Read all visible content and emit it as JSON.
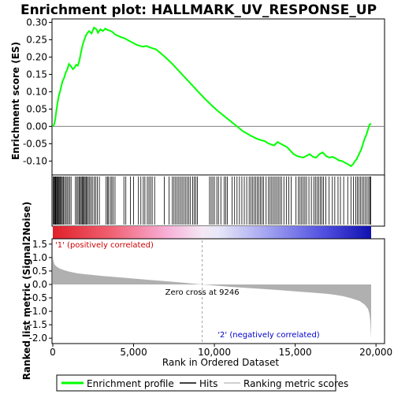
{
  "chart_data": {
    "type": "line",
    "title": "Enrichment plot: HALLMARK_UV_RESPONSE_UP",
    "es_panel": {
      "ylabel": "Enrichment score (ES)",
      "ylim": [
        -0.14,
        0.31
      ],
      "yticks": [
        "0.30",
        "0.25",
        "0.20",
        "0.15",
        "0.10",
        "0.05",
        "0.00",
        "-0.05",
        "-0.10"
      ],
      "ytick_values": [
        0.3,
        0.25,
        0.2,
        0.15,
        0.1,
        0.05,
        0.0,
        -0.05,
        -0.1
      ],
      "series": [
        {
          "name": "Enrichment profile",
          "color": "#00ff00",
          "x": [
            0,
            80,
            150,
            220,
            300,
            380,
            450,
            520,
            600,
            700,
            800,
            900,
            1000,
            1100,
            1250,
            1350,
            1450,
            1550,
            1650,
            1750,
            1850,
            1950,
            2050,
            2150,
            2250,
            2400,
            2550,
            2700,
            2800,
            2950,
            3100,
            3250,
            3400,
            3550,
            3700,
            3850,
            4000,
            4200,
            4400,
            4600,
            4800,
            5000,
            5200,
            5400,
            5600,
            5800,
            6000,
            6200,
            6400,
            6700,
            7000,
            7400,
            7800,
            8200,
            8600,
            9000,
            9400,
            9800,
            10200,
            10600,
            11000,
            11400,
            11800,
            12000,
            12300,
            12600,
            12900,
            13100,
            13300,
            13500,
            13700,
            13900,
            14100,
            14300,
            14500,
            14700,
            14900,
            15100,
            15300,
            15500,
            15700,
            15900,
            16100,
            16300,
            16500,
            16700,
            16900,
            17100,
            17300,
            17500,
            17700,
            17900,
            18100,
            18300,
            18450,
            18600,
            18700,
            18800,
            18900,
            19000,
            19100,
            19200,
            19300,
            19400,
            19500,
            19600,
            19700
          ],
          "y": [
            0.0,
            0.005,
            0.02,
            0.045,
            0.07,
            0.09,
            0.1,
            0.115,
            0.13,
            0.14,
            0.155,
            0.165,
            0.18,
            0.175,
            0.165,
            0.17,
            0.178,
            0.175,
            0.19,
            0.215,
            0.235,
            0.25,
            0.262,
            0.27,
            0.275,
            0.268,
            0.285,
            0.28,
            0.27,
            0.28,
            0.275,
            0.282,
            0.278,
            0.276,
            0.272,
            0.265,
            0.262,
            0.258,
            0.255,
            0.25,
            0.245,
            0.24,
            0.235,
            0.232,
            0.23,
            0.232,
            0.228,
            0.225,
            0.222,
            0.21,
            0.198,
            0.18,
            0.16,
            0.14,
            0.12,
            0.1,
            0.08,
            0.062,
            0.045,
            0.03,
            0.015,
            0.0,
            -0.015,
            -0.02,
            -0.028,
            -0.035,
            -0.04,
            -0.042,
            -0.048,
            -0.052,
            -0.055,
            -0.045,
            -0.05,
            -0.055,
            -0.06,
            -0.07,
            -0.08,
            -0.085,
            -0.088,
            -0.09,
            -0.085,
            -0.08,
            -0.088,
            -0.09,
            -0.08,
            -0.075,
            -0.085,
            -0.09,
            -0.088,
            -0.092,
            -0.098,
            -0.1,
            -0.105,
            -0.11,
            -0.115,
            -0.108,
            -0.1,
            -0.095,
            -0.085,
            -0.075,
            -0.065,
            -0.05,
            -0.035,
            -0.025,
            -0.01,
            0.005,
            0.008
          ]
        }
      ]
    },
    "hits_panel": {
      "hit_positions": [
        20,
        60,
        110,
        150,
        190,
        240,
        290,
        330,
        380,
        430,
        480,
        530,
        590,
        650,
        720,
        800,
        880,
        960,
        1050,
        1130,
        1400,
        1480,
        1560,
        1640,
        1700,
        1760,
        1820,
        1880,
        1940,
        2000,
        2060,
        2120,
        2200,
        2280,
        2360,
        2450,
        2560,
        2650,
        2760,
        2880,
        3300,
        3380,
        3450,
        3560,
        3650,
        3740,
        3850,
        4400,
        4520,
        4800,
        5000,
        5300,
        5450,
        5600,
        5700,
        5850,
        5950,
        6050,
        6150,
        6300,
        6900,
        7200,
        7400,
        7500,
        7600,
        7700,
        7800,
        7900,
        8000,
        8100,
        8200,
        8300,
        8400,
        8500,
        8650,
        8750,
        8850,
        8950,
        9700,
        9800,
        9900,
        10000,
        10150,
        10250,
        10400,
        10600,
        10700,
        10800,
        11100,
        11250,
        11400,
        11550,
        11700,
        11850,
        12000,
        12150,
        12250,
        12350,
        12450,
        12550,
        12650,
        12750,
        12850,
        12950,
        13050,
        13200,
        13350,
        13450,
        13550,
        13650,
        13750,
        13850,
        13950,
        14050,
        14150,
        14300,
        14450,
        14600,
        14750,
        15050,
        15200,
        15300,
        15400,
        15500,
        15600,
        15700,
        15850,
        16000,
        16150,
        16250,
        16350,
        16450,
        16550,
        16650,
        16750,
        16900,
        17100,
        17300,
        17450,
        17650,
        17800,
        18000,
        18250,
        18450,
        18600,
        18750,
        18850,
        18950,
        19050,
        19150,
        19250,
        19350,
        19450,
        19550,
        19620,
        19680
      ]
    },
    "metric_panel": {
      "ylabel": "Ranked list metric (Signal2Noise)",
      "ylim": [
        -2.2,
        1.7
      ],
      "yticks": [
        "1.5",
        "1.0",
        "0.5",
        "0.0",
        "-0.5",
        "-1.0",
        "-1.5",
        "-2.0"
      ],
      "ytick_values": [
        1.5,
        1.0,
        0.5,
        0.0,
        -0.5,
        -1.0,
        -1.5,
        -2.0
      ],
      "x": [
        0,
        20,
        50,
        100,
        200,
        400,
        700,
        1000,
        1500,
        2000,
        3000,
        4000,
        5000,
        6000,
        7000,
        8000,
        9246,
        10000,
        11000,
        12000,
        13000,
        14000,
        15000,
        16000,
        17000,
        17500,
        18000,
        18500,
        19000,
        19300,
        19500,
        19600,
        19650,
        19700
      ],
      "y": [
        1.1,
        0.95,
        0.85,
        0.75,
        0.68,
        0.6,
        0.53,
        0.48,
        0.42,
        0.38,
        0.32,
        0.27,
        0.22,
        0.17,
        0.12,
        0.07,
        0.0,
        -0.04,
        -0.09,
        -0.13,
        -0.17,
        -0.21,
        -0.26,
        -0.3,
        -0.35,
        -0.39,
        -0.44,
        -0.52,
        -0.62,
        -0.75,
        -0.9,
        -1.1,
        -1.4,
        -2.0
      ],
      "zero_cross_label": "Zero cross at 9246",
      "zero_cross": 9246,
      "pos_label": "'1' (positively correlated)",
      "neg_label": "'2' (negatively correlated)"
    },
    "xlabel": "Rank in Ordered Dataset",
    "xlim": [
      0,
      20000
    ],
    "xticks": [
      "0",
      "5,000",
      "10,000",
      "15,000",
      "20,000"
    ],
    "xtick_values": [
      0,
      5000,
      10000,
      15000,
      20000
    ],
    "total_ranks": 19700,
    "legend": {
      "items": [
        {
          "label": "Enrichment profile",
          "color": "#00ff00"
        },
        {
          "label": "Hits",
          "color": "#000000"
        },
        {
          "label": "Ranking metric scores",
          "color": "#c0c0c0"
        }
      ]
    },
    "colors": {
      "profile": "#00ff00",
      "metric_fill": "#b0b0b0",
      "pos_label": "#cc0000",
      "neg_label": "#0000cc",
      "grid_zero": "#808080"
    }
  }
}
